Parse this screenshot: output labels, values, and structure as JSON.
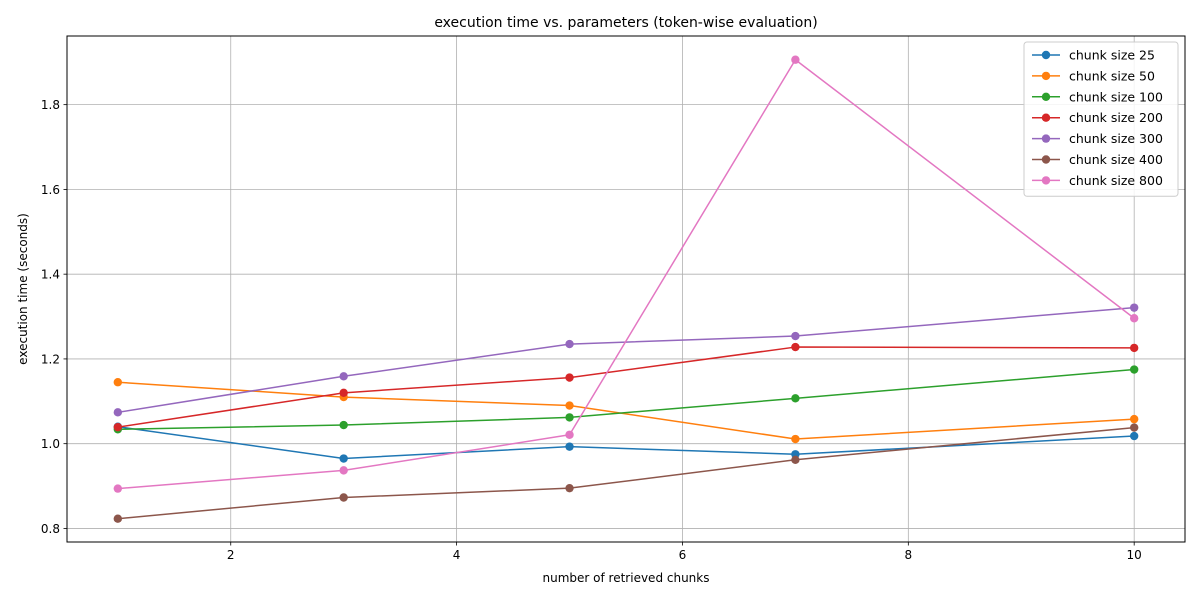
{
  "chart_data": {
    "type": "line",
    "title": "execution time vs. parameters (token-wise evaluation)",
    "xlabel": "number of retrieved chunks",
    "ylabel": "execution time (seconds)",
    "x": [
      1,
      3,
      5,
      7,
      10
    ],
    "xlim": [
      0.55,
      10.45
    ],
    "ylim": [
      0.768,
      1.962
    ],
    "xticks": [
      2,
      4,
      6,
      8,
      10
    ],
    "yticks": [
      0.8,
      1.0,
      1.2,
      1.4,
      1.6,
      1.8
    ],
    "grid": true,
    "legend_position": "top-right",
    "series": [
      {
        "name": "chunk size 25",
        "color": "#1f77b4",
        "values": [
          1.04,
          0.965,
          0.993,
          0.975,
          1.018
        ]
      },
      {
        "name": "chunk size 50",
        "color": "#ff7f0e",
        "values": [
          1.145,
          1.11,
          1.09,
          1.011,
          1.058
        ]
      },
      {
        "name": "chunk size 100",
        "color": "#2ca02c",
        "values": [
          1.034,
          1.044,
          1.062,
          1.107,
          1.175
        ]
      },
      {
        "name": "chunk size 200",
        "color": "#d62728",
        "values": [
          1.039,
          1.12,
          1.156,
          1.228,
          1.226
        ]
      },
      {
        "name": "chunk size 300",
        "color": "#9467bd",
        "values": [
          1.074,
          1.159,
          1.235,
          1.254,
          1.321
        ]
      },
      {
        "name": "chunk size 400",
        "color": "#8c564b",
        "values": [
          0.823,
          0.873,
          0.895,
          0.962,
          1.038
        ]
      },
      {
        "name": "chunk size 800",
        "color": "#e377c2",
        "values": [
          0.894,
          0.937,
          1.021,
          1.906,
          1.296
        ]
      }
    ]
  }
}
